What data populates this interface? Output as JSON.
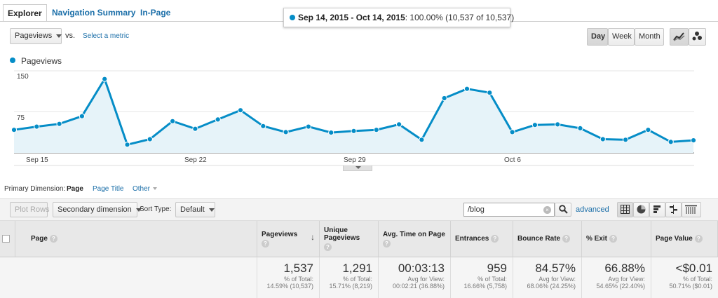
{
  "tabs": [
    "Explorer",
    "Navigation Summary",
    "In-Page"
  ],
  "date_range": {
    "dates": "Sep 14, 2015 - Oct 14, 2015",
    "summary": ": 100.00% (10,537 of 10,537)"
  },
  "metric_select": {
    "value": "Pageviews",
    "vs": "vs.",
    "select_link": "Select a metric"
  },
  "granularity": [
    "Day",
    "Week",
    "Month"
  ],
  "chart_type_icons": [
    "line-chart-icon",
    "motion-chart-icon"
  ],
  "colors": {
    "accent": "#058dc7",
    "link": "#1a6ea8"
  },
  "chart_data": {
    "type": "area",
    "series": [
      {
        "name": "Pageviews",
        "values": [
          42,
          48,
          53,
          67,
          135,
          15,
          25,
          58,
          44,
          61,
          78,
          49,
          38,
          48,
          37,
          40,
          42,
          52,
          24,
          100,
          117,
          110,
          38,
          51,
          52,
          45,
          25,
          24,
          42,
          20,
          23
        ]
      }
    ],
    "x": [
      "Sep 14",
      "Sep 15",
      "Sep 16",
      "Sep 17",
      "Sep 18",
      "Sep 19",
      "Sep 20",
      "Sep 21",
      "Sep 22",
      "Sep 23",
      "Sep 24",
      "Sep 25",
      "Sep 26",
      "Sep 27",
      "Sep 28",
      "Sep 29",
      "Sep 30",
      "Oct 1",
      "Oct 2",
      "Oct 3",
      "Oct 4",
      "Oct 5",
      "Oct 6",
      "Oct 7",
      "Oct 8",
      "Oct 9",
      "Oct 10",
      "Oct 11",
      "Oct 12",
      "Oct 13",
      "Oct 14"
    ],
    "y_ticks": [
      "150",
      "75"
    ],
    "x_tick_labels": [
      "Sep 15",
      "Sep 22",
      "Sep 29",
      "Oct 6"
    ],
    "ylim": [
      0,
      150
    ],
    "grid": true,
    "legend_placement": "top-left"
  },
  "primary_dimension": {
    "label": "Primary Dimension:",
    "options": [
      "Page",
      "Page Title",
      "Other"
    ]
  },
  "toolbar": {
    "plot_rows": "Plot Rows",
    "secondary_dimension": "Secondary dimension",
    "sort_type_label": "Sort Type:",
    "sort_type_value": "Default",
    "search_value": "/blog",
    "advanced": "advanced"
  },
  "view_icons": [
    "data-table-icon",
    "pie-chart-icon",
    "performance-icon",
    "comparison-icon",
    "pivot-icon"
  ],
  "table": {
    "columns": [
      {
        "title": "Page"
      },
      {
        "title": "Pageviews"
      },
      {
        "title": "Unique Pageviews"
      },
      {
        "title": "Avg. Time on Page"
      },
      {
        "title": "Entrances"
      },
      {
        "title": "Bounce Rate"
      },
      {
        "title": "% Exit"
      },
      {
        "title": "Page Value"
      }
    ],
    "totals": [
      {
        "value": "1,537",
        "sub1": "% of Total:",
        "sub2": "14.59% (10,537)"
      },
      {
        "value": "1,291",
        "sub1": "% of Total:",
        "sub2": "15.71% (8,219)"
      },
      {
        "value": "00:03:13",
        "sub1": "Avg for View:",
        "sub2": "00:02:21 (36.88%)"
      },
      {
        "value": "959",
        "sub1": "% of Total:",
        "sub2": "16.66% (5,758)"
      },
      {
        "value": "84.57%",
        "sub1": "Avg for View:",
        "sub2": "68.06% (24.25%)"
      },
      {
        "value": "66.88%",
        "sub1": "Avg for View:",
        "sub2": "54.65% (22.40%)"
      },
      {
        "value": "<$0.01",
        "sub1": "% of Total:",
        "sub2": "50.71% ($0.01)"
      }
    ]
  }
}
